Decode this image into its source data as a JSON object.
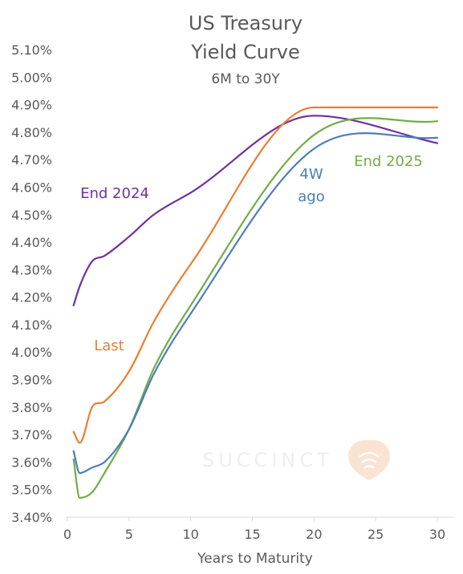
{
  "chart_data": {
    "type": "line",
    "title": "US Treasury",
    "title_line2": "Yield Curve",
    "subtitle": "6M to 30Y",
    "xlabel": "Years to Maturity",
    "ylabel": "",
    "xlim": [
      0,
      30
    ],
    "ylim": [
      3.4,
      5.1
    ],
    "x_ticks": [
      "0",
      "5",
      "10",
      "15",
      "20",
      "25",
      "30"
    ],
    "y_ticks": [
      "3.40%",
      "3.50%",
      "3.60%",
      "3.70%",
      "3.80%",
      "3.90%",
      "4.00%",
      "4.10%",
      "4.20%",
      "4.30%",
      "4.40%",
      "4.50%",
      "4.60%",
      "4.70%",
      "4.80%",
      "4.90%",
      "5.00%",
      "5.10%"
    ],
    "grid": false,
    "legend": "none (series labeled inline)",
    "watermark": "SUCCINCT",
    "series": [
      {
        "name": "End 2024",
        "label_lines": [
          "End 2024"
        ],
        "color": "#7030A0",
        "x": [
          0.5,
          1,
          2,
          3,
          5,
          7,
          10,
          20,
          30
        ],
        "y": [
          4.17,
          4.24,
          4.33,
          4.35,
          4.42,
          4.5,
          4.58,
          4.86,
          4.76
        ]
      },
      {
        "name": "Last",
        "label_lines": [
          "Last"
        ],
        "color": "#ED7D31",
        "x": [
          0.5,
          1,
          2,
          3,
          5,
          7,
          10,
          20,
          30
        ],
        "y": [
          3.71,
          3.67,
          3.8,
          3.82,
          3.93,
          4.11,
          4.32,
          4.89,
          4.89
        ]
      },
      {
        "name": "4W ago",
        "label_lines": [
          "4W",
          "ago"
        ],
        "color": "#4A7EBB",
        "x": [
          0.5,
          1,
          2,
          3,
          5,
          7,
          10,
          20,
          30
        ],
        "y": [
          3.64,
          3.56,
          3.58,
          3.6,
          3.72,
          3.92,
          4.14,
          4.74,
          4.78
        ]
      },
      {
        "name": "End 2025",
        "label_lines": [
          "End 2025"
        ],
        "color": "#70AD47",
        "x": [
          0.5,
          1,
          2,
          3,
          5,
          7,
          10,
          20,
          30
        ],
        "y": [
          3.61,
          3.47,
          3.49,
          3.56,
          3.72,
          3.94,
          4.17,
          4.79,
          4.84
        ]
      }
    ]
  }
}
